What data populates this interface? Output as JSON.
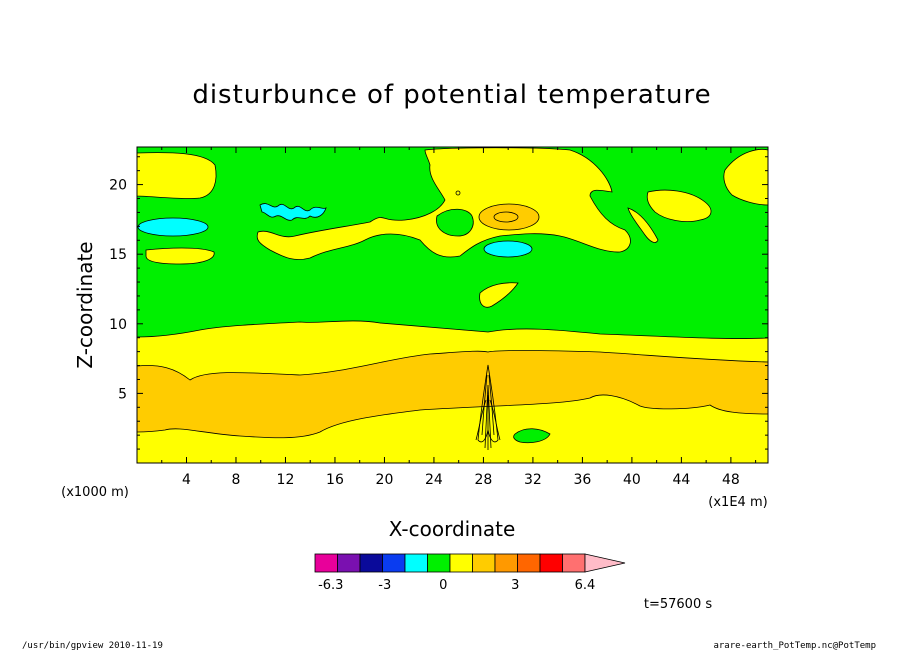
{
  "chart_data": {
    "type": "heatmap",
    "title": "disturbunce of potential temperature",
    "xlabel": "X-coordinate",
    "ylabel": "Z-coordinate",
    "x_unit_left": "(x1000 m)",
    "x_unit_right": "(x1E4 m)",
    "x_ticks": [
      "4",
      "8",
      "12",
      "16",
      "20",
      "24",
      "28",
      "32",
      "36",
      "40",
      "44",
      "48"
    ],
    "y_ticks": [
      "5",
      "10",
      "15",
      "20"
    ],
    "xlim": [
      0,
      51
    ],
    "ylim": [
      0,
      22.7
    ],
    "grid": false,
    "colorbar": {
      "tick_labels": [
        "-6.3",
        "-3",
        "0",
        "3",
        "6.4"
      ],
      "colors": [
        "#e8009a",
        "#7a10b0",
        "#0a0a9a",
        "#0a3cf0",
        "#00ffff",
        "#00f000",
        "#ffff00",
        "#ffcc00",
        "#ff9900",
        "#ff6600",
        "#ff0000",
        "#ff7070",
        "#ffbcc8"
      ]
    },
    "bands": {
      "bottom_yellow": "#ffff00",
      "mid_orange": "#ffcc00",
      "upper_yellow": "#ffff00",
      "top_green": "#00f000",
      "cyan": "#00ffff"
    },
    "annotation": "t=57600 s"
  },
  "footer": {
    "left": "/usr/bin/gpview   2010-11-19",
    "right": "arare-earth_PotTemp.nc@PotTemp"
  }
}
